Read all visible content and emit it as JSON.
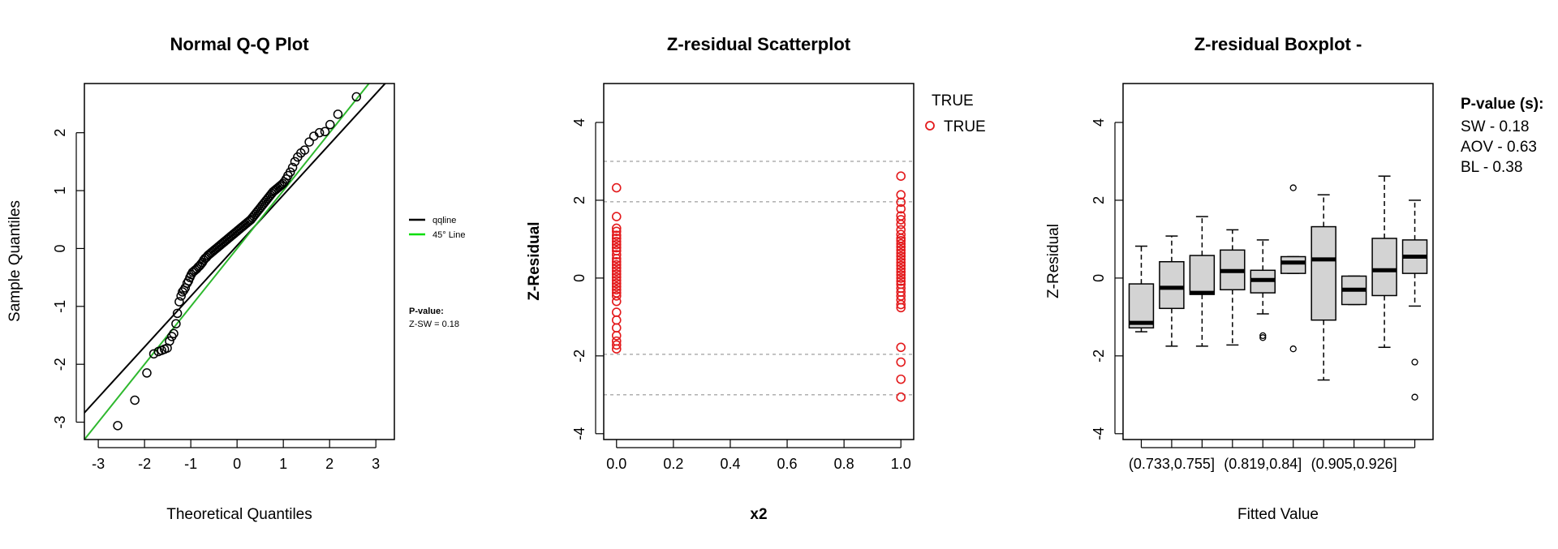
{
  "chart_data": [
    {
      "type": "scatter",
      "title": "Normal Q-Q Plot",
      "xlabel": "Theoretical Quantiles",
      "ylabel": "Sample Quantiles",
      "xlim": [
        -3.3,
        3.4
      ],
      "ylim": [
        -3.3,
        2.85
      ],
      "xticks": [
        "-3",
        "-2",
        "-1",
        "0",
        "1",
        "2",
        "3"
      ],
      "yticks": [
        "-3",
        "-2",
        "-1",
        "0",
        "1",
        "2"
      ],
      "legend": {
        "placement": "right",
        "entries": [
          {
            "label": "qqline",
            "color": "#000000"
          },
          {
            "label": "45° Line",
            "color": "#00cc00"
          }
        ]
      },
      "pvalue": {
        "heading": "P-value:",
        "text": "Z-SW = 0.18"
      },
      "lines": {
        "qqline": {
          "color": "#000000",
          "intercept": 0.05,
          "slope": 0.875
        },
        "ref45": {
          "color": "#2eb82e",
          "intercept": 0.0,
          "slope": 1.0
        }
      },
      "points": [
        [
          -2.58,
          -3.06
        ],
        [
          -2.21,
          -2.62
        ],
        [
          -1.95,
          -2.15
        ],
        [
          -1.8,
          -1.82
        ],
        [
          -1.7,
          -1.78
        ],
        [
          -1.63,
          -1.76
        ],
        [
          -1.57,
          -1.74
        ],
        [
          -1.51,
          -1.72
        ],
        [
          -1.46,
          -1.6
        ],
        [
          -1.41,
          -1.52
        ],
        [
          -1.37,
          -1.47
        ],
        [
          -1.32,
          -1.3
        ],
        [
          -1.29,
          -1.12
        ],
        [
          -1.25,
          -0.92
        ],
        [
          -1.21,
          -0.82
        ],
        [
          -1.18,
          -0.75
        ],
        [
          -1.15,
          -0.72
        ],
        [
          -1.12,
          -0.68
        ],
        [
          -1.08,
          -0.6
        ],
        [
          -1.05,
          -0.56
        ],
        [
          -1.02,
          -0.5
        ],
        [
          -0.99,
          -0.45
        ],
        [
          -0.96,
          -0.41
        ],
        [
          -0.93,
          -0.39
        ],
        [
          -0.9,
          -0.37
        ],
        [
          -0.87,
          -0.35
        ],
        [
          -0.84,
          -0.32
        ],
        [
          -0.81,
          -0.3
        ],
        [
          -0.78,
          -0.27
        ],
        [
          -0.75,
          -0.24
        ],
        [
          -0.72,
          -0.2
        ],
        [
          -0.69,
          -0.17
        ],
        [
          -0.66,
          -0.15
        ],
        [
          -0.63,
          -0.12
        ],
        [
          -0.6,
          -0.1
        ],
        [
          -0.57,
          -0.08
        ],
        [
          -0.54,
          -0.06
        ],
        [
          -0.51,
          -0.04
        ],
        [
          -0.48,
          -0.02
        ],
        [
          -0.45,
          0.0
        ],
        [
          -0.42,
          0.02
        ],
        [
          -0.39,
          0.04
        ],
        [
          -0.36,
          0.06
        ],
        [
          -0.33,
          0.08
        ],
        [
          -0.3,
          0.1
        ],
        [
          -0.27,
          0.12
        ],
        [
          -0.24,
          0.14
        ],
        [
          -0.21,
          0.16
        ],
        [
          -0.18,
          0.18
        ],
        [
          -0.15,
          0.2
        ],
        [
          -0.12,
          0.22
        ],
        [
          -0.09,
          0.24
        ],
        [
          -0.06,
          0.26
        ],
        [
          -0.03,
          0.28
        ],
        [
          0.0,
          0.3
        ],
        [
          0.03,
          0.32
        ],
        [
          0.06,
          0.34
        ],
        [
          0.09,
          0.36
        ],
        [
          0.12,
          0.38
        ],
        [
          0.15,
          0.4
        ],
        [
          0.18,
          0.42
        ],
        [
          0.21,
          0.44
        ],
        [
          0.24,
          0.46
        ],
        [
          0.27,
          0.48
        ],
        [
          0.3,
          0.5
        ],
        [
          0.33,
          0.53
        ],
        [
          0.36,
          0.56
        ],
        [
          0.39,
          0.59
        ],
        [
          0.42,
          0.62
        ],
        [
          0.45,
          0.65
        ],
        [
          0.48,
          0.68
        ],
        [
          0.51,
          0.71
        ],
        [
          0.54,
          0.74
        ],
        [
          0.57,
          0.77
        ],
        [
          0.6,
          0.8
        ],
        [
          0.63,
          0.83
        ],
        [
          0.66,
          0.86
        ],
        [
          0.69,
          0.89
        ],
        [
          0.72,
          0.92
        ],
        [
          0.75,
          0.95
        ],
        [
          0.78,
          0.98
        ],
        [
          0.81,
          1.0
        ],
        [
          0.84,
          1.02
        ],
        [
          0.87,
          1.04
        ],
        [
          0.9,
          1.06
        ],
        [
          0.93,
          1.08
        ],
        [
          0.96,
          1.1
        ],
        [
          0.99,
          1.12
        ],
        [
          1.02,
          1.15
        ],
        [
          1.06,
          1.2
        ],
        [
          1.1,
          1.26
        ],
        [
          1.15,
          1.32
        ],
        [
          1.2,
          1.4
        ],
        [
          1.25,
          1.5
        ],
        [
          1.31,
          1.58
        ],
        [
          1.38,
          1.65
        ],
        [
          1.46,
          1.7
        ],
        [
          1.56,
          1.84
        ],
        [
          1.66,
          1.94
        ],
        [
          1.78,
          2.0
        ],
        [
          1.9,
          2.02
        ],
        [
          2.01,
          2.14
        ],
        [
          2.18,
          2.32
        ],
        [
          2.58,
          2.62
        ]
      ]
    },
    {
      "type": "scatter",
      "title": "Z-residual Scatterplot",
      "xlabel": "x2",
      "ylabel": "Z-Residual",
      "xlim": [
        -0.045,
        1.045
      ],
      "ylim": [
        -4.15,
        5.0
      ],
      "xticks": [
        "0.0",
        "0.2",
        "0.4",
        "0.6",
        "0.8",
        "1.0"
      ],
      "yticks": [
        "-4",
        "-2",
        "0",
        "2",
        "4"
      ],
      "hlines": [
        -3,
        -1.96,
        1.96,
        3
      ],
      "legend": {
        "placement": "outside-top-right",
        "title": "TRUE",
        "entries": [
          {
            "label": "TRUE",
            "color": "#e31a1c"
          }
        ]
      },
      "point_color": "#e31a1c",
      "points": [
        [
          0,
          2.32
        ],
        [
          0,
          1.58
        ],
        [
          0,
          1.28
        ],
        [
          0,
          1.2
        ],
        [
          0,
          1.1
        ],
        [
          0,
          1.02
        ],
        [
          0,
          0.94
        ],
        [
          0,
          0.86
        ],
        [
          0,
          0.78
        ],
        [
          0,
          0.7
        ],
        [
          0,
          0.6
        ],
        [
          0,
          0.5
        ],
        [
          0,
          0.42
        ],
        [
          0,
          0.34
        ],
        [
          0,
          0.26
        ],
        [
          0,
          0.18
        ],
        [
          0,
          0.1
        ],
        [
          0,
          0.02
        ],
        [
          0,
          -0.06
        ],
        [
          0,
          -0.14
        ],
        [
          0,
          -0.22
        ],
        [
          0,
          -0.3
        ],
        [
          0,
          -0.38
        ],
        [
          0,
          -0.46
        ],
        [
          0,
          -0.6
        ],
        [
          0,
          -0.88
        ],
        [
          0,
          -1.08
        ],
        [
          0,
          -1.28
        ],
        [
          0,
          -1.48
        ],
        [
          0,
          -1.62
        ],
        [
          0,
          -1.72
        ],
        [
          0,
          -1.82
        ],
        [
          1,
          2.62
        ],
        [
          1,
          2.14
        ],
        [
          1,
          1.95
        ],
        [
          1,
          1.78
        ],
        [
          1,
          1.6
        ],
        [
          1,
          1.5
        ],
        [
          1,
          1.38
        ],
        [
          1,
          1.24
        ],
        [
          1,
          1.12
        ],
        [
          1,
          1.02
        ],
        [
          1,
          0.96
        ],
        [
          1,
          0.88
        ],
        [
          1,
          0.8
        ],
        [
          1,
          0.72
        ],
        [
          1,
          0.64
        ],
        [
          1,
          0.56
        ],
        [
          1,
          0.48
        ],
        [
          1,
          0.4
        ],
        [
          1,
          0.32
        ],
        [
          1,
          0.24
        ],
        [
          1,
          0.16
        ],
        [
          1,
          0.08
        ],
        [
          1,
          0.0
        ],
        [
          1,
          -0.08
        ],
        [
          1,
          -0.16
        ],
        [
          1,
          -0.26
        ],
        [
          1,
          -0.36
        ],
        [
          1,
          -0.46
        ],
        [
          1,
          -0.56
        ],
        [
          1,
          -0.68
        ],
        [
          1,
          -0.76
        ],
        [
          1,
          -1.78
        ],
        [
          1,
          -2.16
        ],
        [
          1,
          -2.6
        ],
        [
          1,
          -3.06
        ]
      ]
    },
    {
      "type": "box",
      "title": "Z-residual Boxplot -",
      "xlabel": "Fitted Value",
      "ylabel": "Z-Residual",
      "xlim": [
        0.4,
        10.6
      ],
      "ylim": [
        -4.15,
        5.0
      ],
      "yticks": [
        "-4",
        "-2",
        "0",
        "2",
        "4"
      ],
      "xticklabels": [
        {
          "at": 2,
          "label": "(0.733,0.755]"
        },
        {
          "at": 5,
          "label": "(0.819,0.84]"
        },
        {
          "at": 8,
          "label": "(0.905,0.926]"
        }
      ],
      "pvalue": {
        "heading": "P-value (s):",
        "lines": [
          "SW - 0.18",
          "AOV - 0.63",
          "BL - 0.38"
        ]
      },
      "box_color": "#d3d3d3",
      "boxes": [
        {
          "lower_whisker": -1.38,
          "q1": -1.28,
          "median": -1.15,
          "q3": -0.15,
          "upper_whisker": 0.82,
          "outliers": []
        },
        {
          "lower_whisker": -1.75,
          "q1": -0.78,
          "median": -0.25,
          "q3": 0.42,
          "upper_whisker": 1.08,
          "outliers": []
        },
        {
          "lower_whisker": -1.75,
          "q1": -0.42,
          "median": -0.38,
          "q3": 0.58,
          "upper_whisker": 1.58,
          "outliers": []
        },
        {
          "lower_whisker": -1.72,
          "q1": -0.3,
          "median": 0.18,
          "q3": 0.72,
          "upper_whisker": 1.24,
          "outliers": []
        },
        {
          "lower_whisker": -0.92,
          "q1": -0.38,
          "median": -0.05,
          "q3": 0.2,
          "upper_whisker": 0.98,
          "outliers": [
            -1.48,
            -1.53
          ]
        },
        {
          "lower_whisker": 0.12,
          "q1": 0.12,
          "median": 0.4,
          "q3": 0.55,
          "upper_whisker": 0.55,
          "outliers": [
            2.32,
            -1.82
          ]
        },
        {
          "lower_whisker": -2.62,
          "q1": -1.08,
          "median": 0.48,
          "q3": 1.32,
          "upper_whisker": 2.14,
          "outliers": []
        },
        {
          "lower_whisker": -0.68,
          "q1": -0.68,
          "median": -0.3,
          "q3": 0.05,
          "upper_whisker": 0.05,
          "outliers": []
        },
        {
          "lower_whisker": -1.78,
          "q1": -0.45,
          "median": 0.2,
          "q3": 1.02,
          "upper_whisker": 2.62,
          "outliers": []
        },
        {
          "lower_whisker": -0.72,
          "q1": 0.12,
          "median": 0.55,
          "q3": 0.98,
          "upper_whisker": 2.0,
          "outliers": [
            -2.16,
            -3.06
          ]
        }
      ]
    }
  ]
}
